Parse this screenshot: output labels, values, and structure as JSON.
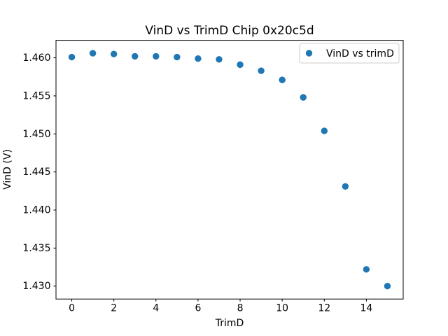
{
  "chart_data": {
    "type": "scatter",
    "title": "VinD vs TrimD Chip 0x20c5d",
    "xlabel": "TrimD",
    "ylabel": "VinD (V)",
    "legend": {
      "label": "VinD vs trimD",
      "position": "upper right"
    },
    "x": [
      0,
      1,
      2,
      3,
      4,
      5,
      6,
      7,
      8,
      9,
      10,
      11,
      12,
      13,
      14,
      15
    ],
    "series": [
      {
        "name": "VinD vs trimD",
        "values": [
          1.4601,
          1.4606,
          1.4605,
          1.4602,
          1.4602,
          1.4601,
          1.4599,
          1.4598,
          1.4591,
          1.4583,
          1.4571,
          1.4548,
          1.4504,
          1.4431,
          1.4322,
          1.43
        ]
      }
    ],
    "xlim": [
      -0.75,
      15.75
    ],
    "ylim": [
      1.4283,
      1.4623
    ],
    "xticks": {
      "values": [
        0,
        2,
        4,
        6,
        8,
        10,
        12,
        14
      ],
      "labels": [
        "0",
        "2",
        "4",
        "6",
        "8",
        "10",
        "12",
        "14"
      ]
    },
    "yticks": {
      "values": [
        1.43,
        1.435,
        1.44,
        1.445,
        1.45,
        1.455,
        1.46
      ],
      "labels": [
        "1.430",
        "1.435",
        "1.440",
        "1.445",
        "1.450",
        "1.455",
        "1.460"
      ]
    },
    "grid": false,
    "marker": {
      "shape": "circle",
      "radius_px": 4.7
    },
    "colors": {
      "marker": "#1f77b4",
      "axes": "#000000",
      "text": "#000000",
      "background": "#ffffff",
      "legend_border": "#cccccc",
      "legend_background": "#ffffff"
    }
  }
}
